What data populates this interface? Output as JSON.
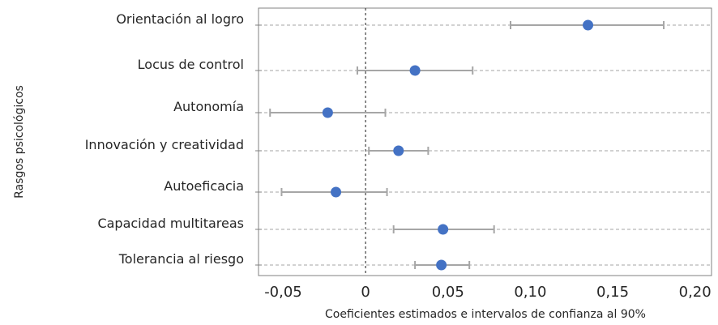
{
  "chart_data": {
    "type": "scatter",
    "title": "",
    "xlabel": "Coeficientes estimados e intervalos de confianza al 90%",
    "ylabel": "Rasgos psicológicos",
    "xlim": [
      -0.065,
      0.21
    ],
    "x_ticks": [
      -0.05,
      0,
      0.05,
      0.1,
      0.15,
      0.2
    ],
    "x_tick_labels": [
      "-0,05",
      "0",
      "0,05",
      "0,10",
      "0,15",
      "0,20"
    ],
    "reference_line_x": 0,
    "grid": "horizontal dashed",
    "categories": [
      "Orientación al logro",
      "Locus de control",
      "Autonomía",
      "Innovación y creatividad",
      "Autoeficacia",
      "Capacidad multitareas",
      "Tolerancia al riesgo"
    ],
    "estimates": [
      0.135,
      0.03,
      -0.023,
      0.02,
      -0.018,
      0.047,
      0.046
    ],
    "ci_low": [
      0.088,
      -0.005,
      -0.058,
      0.002,
      -0.051,
      0.017,
      0.03
    ],
    "ci_high": [
      0.181,
      0.065,
      0.012,
      0.038,
      0.013,
      0.078,
      0.063
    ],
    "colors": {
      "point": "#4472C4",
      "errorbar": "#A6A6A6",
      "grid": "#A6A6A6",
      "frame": "#808080",
      "zero_line": "#404040"
    }
  }
}
